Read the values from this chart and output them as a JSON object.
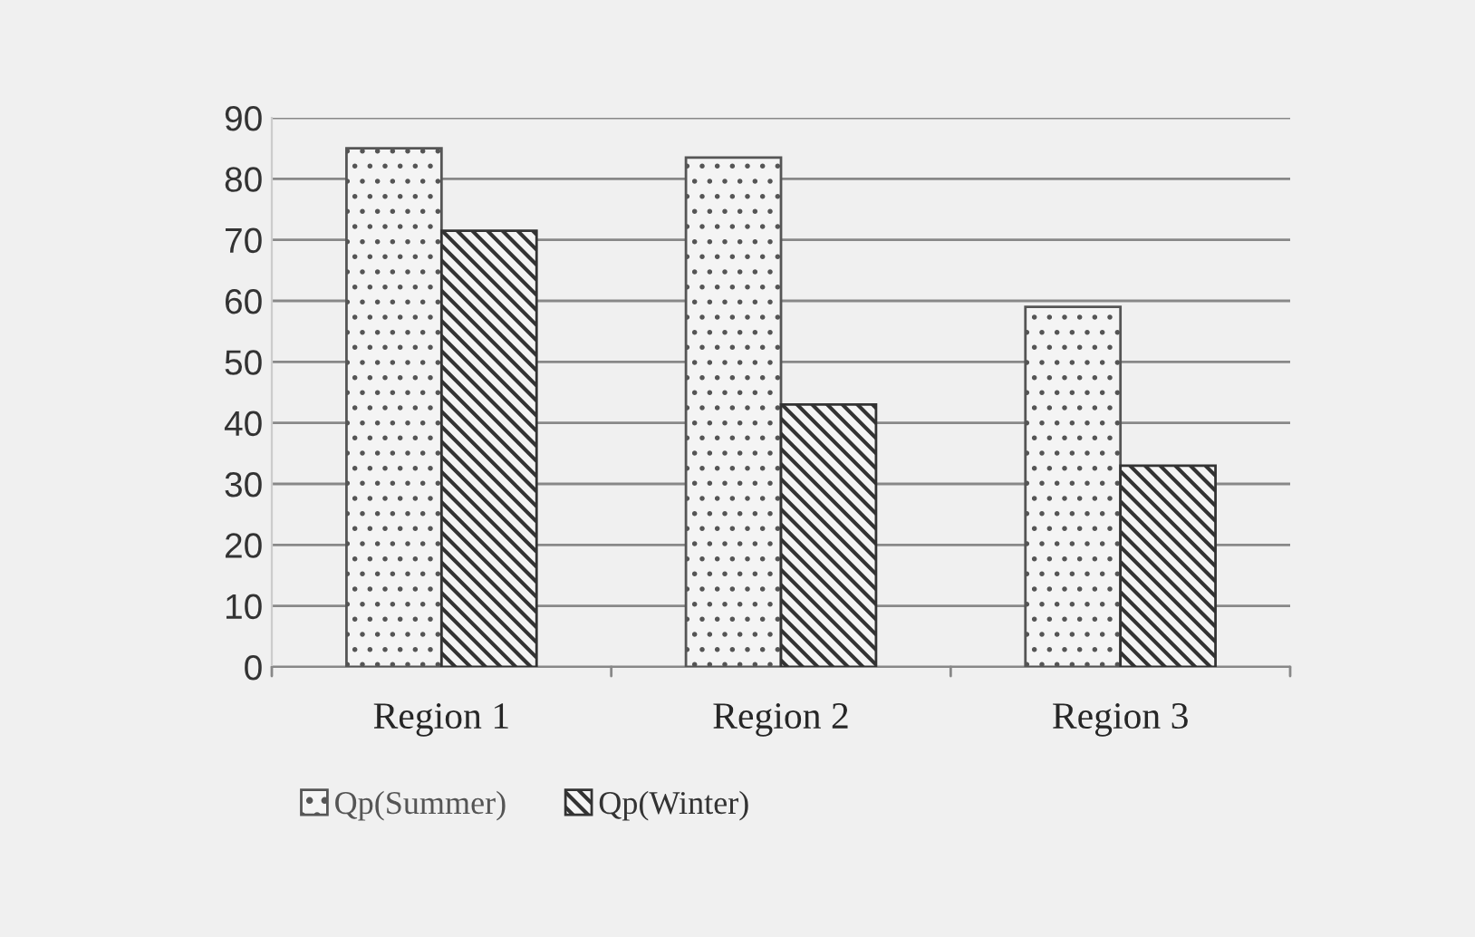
{
  "chart_data": {
    "type": "bar",
    "categories": [
      "Region 1",
      "Region 2",
      "Region 3"
    ],
    "series": [
      {
        "name": "Qp(Summer)",
        "color": "#555555",
        "values": [
          85,
          83.5,
          59
        ]
      },
      {
        "name": "Qp(Winter)",
        "color": "#333333",
        "values": [
          71.5,
          43,
          33
        ]
      }
    ],
    "ylim": [
      0,
      90
    ],
    "yticks": [
      0,
      10,
      20,
      30,
      40,
      50,
      60,
      70,
      80,
      90
    ],
    "grid": "y",
    "legend": "bottom"
  }
}
